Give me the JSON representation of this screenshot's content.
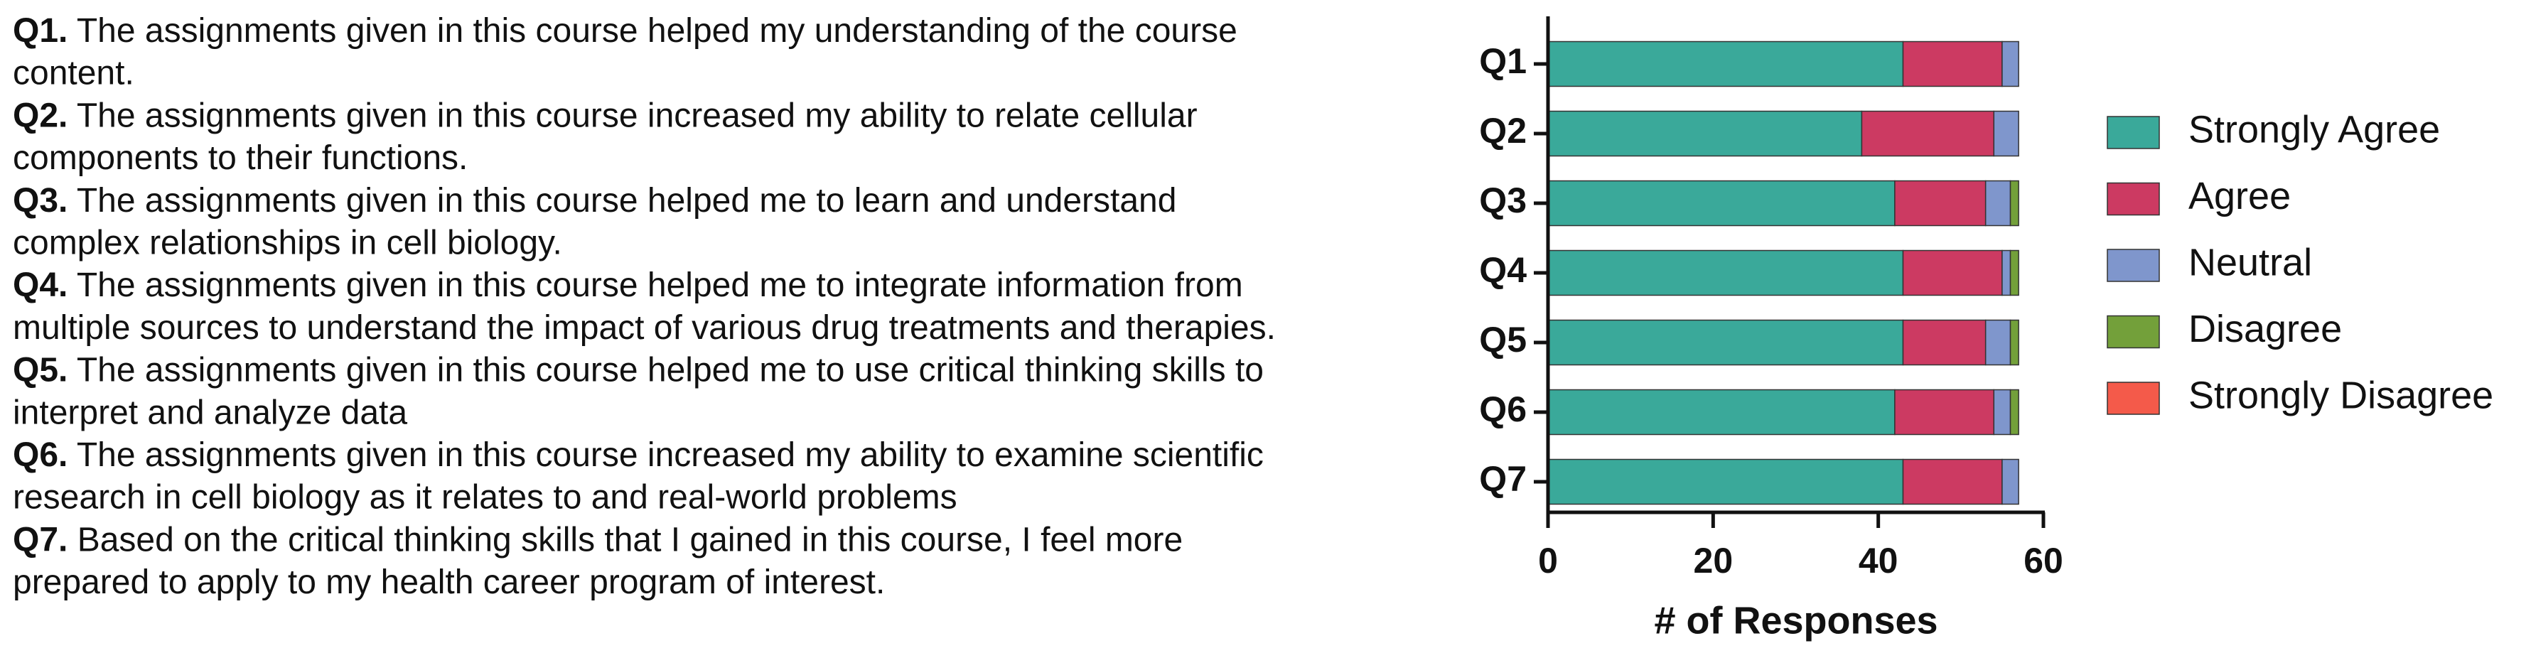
{
  "questions": [
    {
      "label": "Q1.",
      "lines": [
        "The assignments given in this course helped my understanding of the course",
        "content."
      ]
    },
    {
      "label": "Q2.",
      "lines": [
        "The assignments given in this course increased my ability to relate cellular",
        "components to their functions."
      ]
    },
    {
      "label": "Q3.",
      "lines": [
        "The assignments given in this course helped me to learn and understand",
        "complex relationships in cell biology."
      ]
    },
    {
      "label": "Q4.",
      "lines": [
        "The assignments given in this course helped me to integrate information from",
        "multiple sources to understand the impact of various drug treatments and therapies."
      ]
    },
    {
      "label": "Q5.",
      "lines": [
        "The assignments given in this course helped me to use critical thinking skills to",
        "interpret and analyze data"
      ]
    },
    {
      "label": "Q6.",
      "lines": [
        "The assignments given in this course increased my ability to examine scientific",
        "research in cell biology as it relates to and real-world problems"
      ]
    },
    {
      "label": "Q7.",
      "lines": [
        "Based on the critical thinking skills that I gained in this course, I feel more",
        "prepared to apply to my health career program of interest."
      ]
    }
  ],
  "chart_data": {
    "type": "stacked-barh",
    "x_label": "# of Responses",
    "categories": [
      "Q1",
      "Q2",
      "Q3",
      "Q4",
      "Q5",
      "Q6",
      "Q7"
    ],
    "series": [
      {
        "name": "Strongly Agree",
        "color": "#3aa99a",
        "values": [
          43,
          38,
          42,
          43,
          43,
          42,
          43
        ]
      },
      {
        "name": "Agree",
        "color": "#cc3a62",
        "values": [
          12,
          16,
          11,
          12,
          10,
          12,
          12
        ]
      },
      {
        "name": "Neutral",
        "color": "#7f96cc",
        "values": [
          2,
          3,
          3,
          1,
          3,
          2,
          2
        ]
      },
      {
        "name": "Disagree",
        "color": "#73a03a",
        "values": [
          0,
          0,
          1,
          1,
          1,
          1,
          0
        ]
      },
      {
        "name": "Strongly Disagree",
        "color": "#f45a4a",
        "values": [
          0,
          0,
          0,
          0,
          0,
          0,
          0
        ]
      }
    ],
    "xlim": [
      0,
      60
    ],
    "xticks": [
      0,
      20,
      40,
      60
    ]
  }
}
